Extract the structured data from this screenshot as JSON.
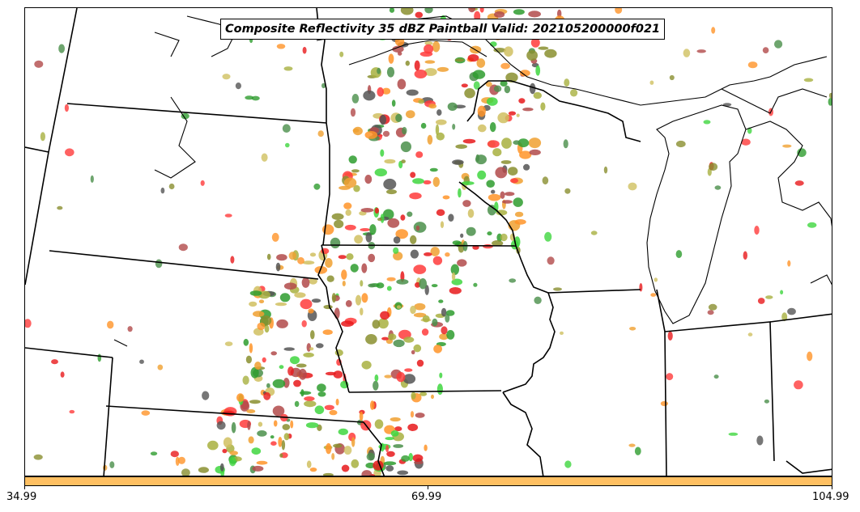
{
  "title": "Composite Reflectivity 35 dBZ Paintball Valid: 202105200000f021",
  "colorbar": {
    "color": "#ffc062",
    "ticks": [
      "34.99",
      "69.99",
      "104.99"
    ]
  },
  "paintball_colors": [
    "#ff3b3b",
    "#e8191b",
    "#3fd63f",
    "#2e9c2e",
    "#ff9428",
    "#f0a030",
    "#a8b040",
    "#8a8f2f",
    "#555555",
    "#b24a4a",
    "#d0c060",
    "#4a8f4a"
  ]
}
